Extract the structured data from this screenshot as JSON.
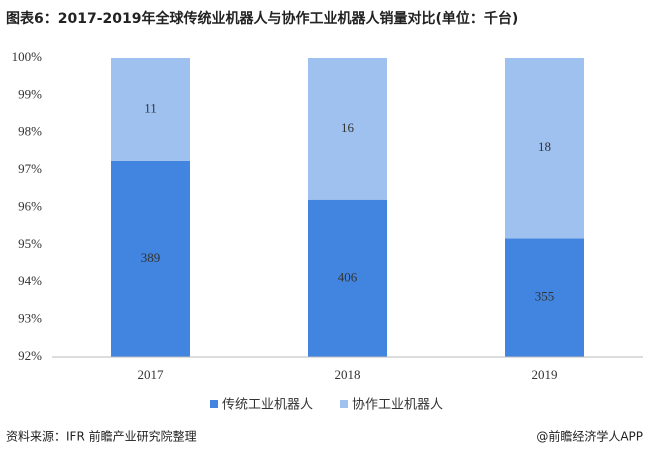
{
  "chart_data": {
    "type": "bar",
    "stack": "percent",
    "title": "图表6：2017-2019年全球传统业机器人与协作工业机器人销量对比(单位：千台)",
    "categories": [
      "2017",
      "2018",
      "2019"
    ],
    "series": [
      {
        "name": "传统工业机器人",
        "color": "#4285e0",
        "values": [
          389,
          406,
          355
        ]
      },
      {
        "name": "协作工业机器人",
        "color": "#9fc1f0",
        "values": [
          11,
          16,
          18
        ]
      }
    ],
    "ylim": [
      92,
      100
    ],
    "yticks": [
      {
        "value": 92,
        "label": "92%"
      },
      {
        "value": 93,
        "label": "93%"
      },
      {
        "value": 94,
        "label": "94%"
      },
      {
        "value": 95,
        "label": "95%"
      },
      {
        "value": 96,
        "label": "96%"
      },
      {
        "value": 97,
        "label": "97%"
      },
      {
        "value": 98,
        "label": "98%"
      },
      {
        "value": 99,
        "label": "99%"
      },
      {
        "value": 100,
        "label": "100%"
      }
    ],
    "legend": "bottom",
    "source": "资料来源：IFR 前瞻产业研究院整理",
    "credit": "@前瞻经济学人APP"
  }
}
